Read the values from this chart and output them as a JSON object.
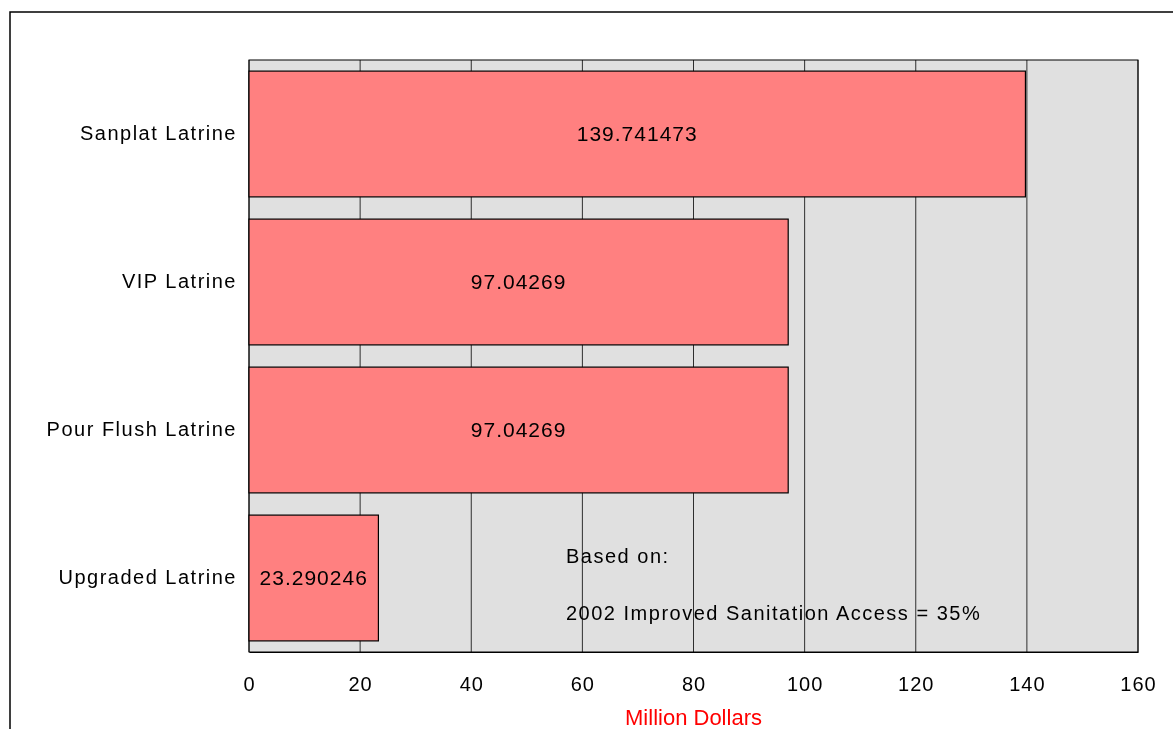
{
  "chart_data": {
    "type": "bar",
    "orientation": "horizontal",
    "categories": [
      "Sanplat Latrine",
      "VIP Latrine",
      "Pour Flush Latrine",
      "Upgraded Latrine"
    ],
    "values": [
      139.741473,
      97.04269,
      97.04269,
      23.290246
    ],
    "color": "#ff8080",
    "xlim": [
      0,
      160
    ],
    "xticks": [
      0,
      20,
      40,
      60,
      80,
      100,
      120,
      140,
      160
    ],
    "grid": "x",
    "data_labels": true,
    "xlabel": "Million Dollars",
    "annotations": [
      "Based on:",
      "2002 Improved Sanitation Access = 35%"
    ]
  }
}
